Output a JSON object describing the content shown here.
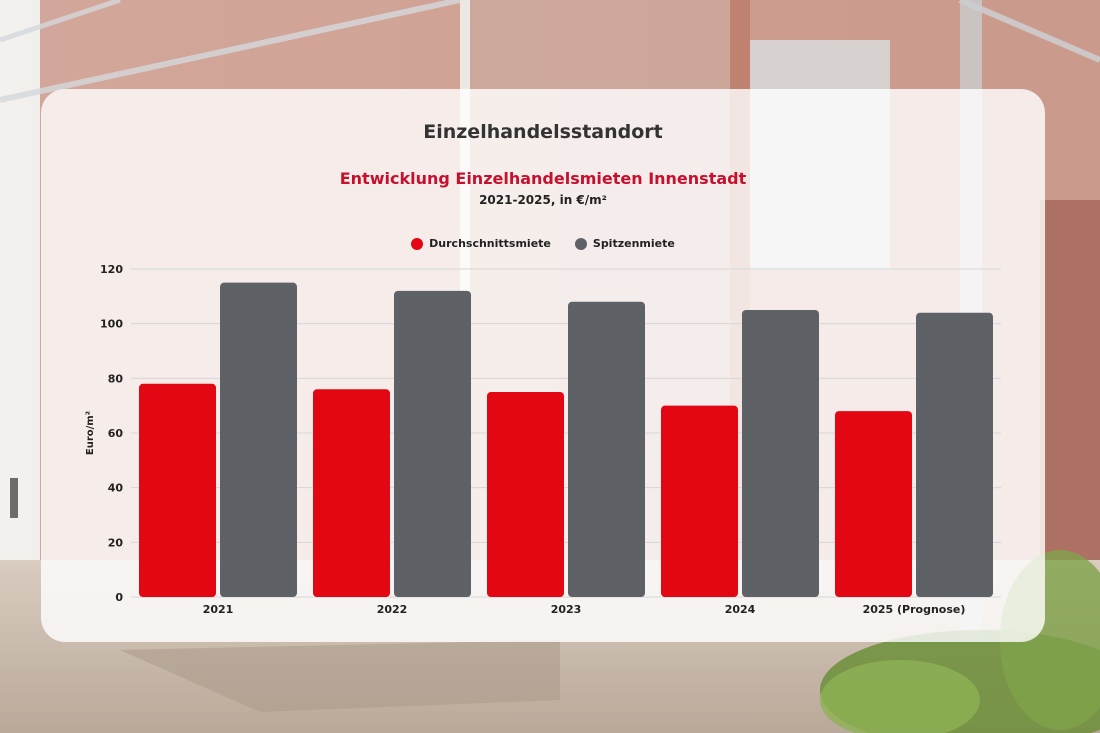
{
  "page": {
    "heading": "Einzelhandelsstandort"
  },
  "colors": {
    "accent": "#e30613",
    "secondary": "#5e6267",
    "title_red": "#c8102e"
  },
  "chart_data": {
    "type": "bar",
    "title": "Entwicklung Einzelhandelsmieten Innenstadt",
    "subtitle": "2021-2025, in €/m²",
    "xlabel": "",
    "ylabel": "Euro/m²",
    "ylim": [
      0,
      120
    ],
    "yticks": [
      0,
      20,
      40,
      60,
      80,
      100,
      120
    ],
    "grid": true,
    "legend_position": "top",
    "categories": [
      "2021",
      "2022",
      "2023",
      "2024",
      "2025 (Prognose)"
    ],
    "series": [
      {
        "name": "Durchschnittsmiete",
        "color": "#e30613",
        "values": [
          78,
          76,
          75,
          70,
          68
        ]
      },
      {
        "name": "Spitzenmiete",
        "color": "#5e6267",
        "values": [
          115,
          112,
          108,
          105,
          104
        ]
      }
    ]
  }
}
